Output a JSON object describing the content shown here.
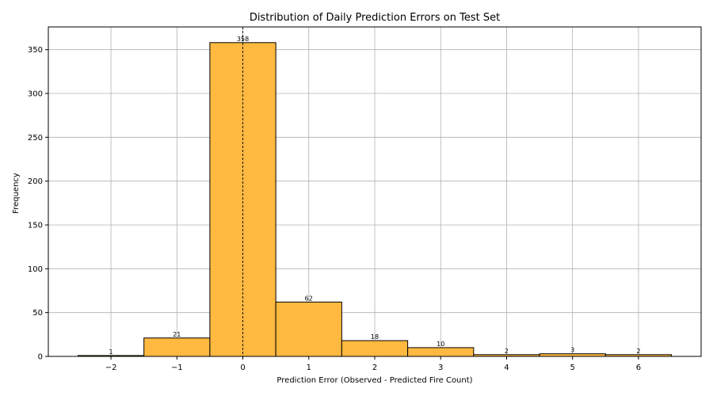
{
  "chart_data": {
    "type": "bar",
    "title": "Distribution of Daily Prediction Errors on Test Set",
    "xlabel": "Prediction Error (Observed - Predicted Fire Count)",
    "ylabel": "Frequency",
    "x": [
      -2,
      -1,
      0,
      1,
      2,
      3,
      4,
      5,
      6
    ],
    "values": [
      1,
      21,
      358,
      62,
      18,
      10,
      2,
      3,
      2
    ],
    "data_labels": [
      "1",
      "21",
      "358",
      "62",
      "18",
      "10",
      "2",
      "3",
      "2"
    ],
    "xticks": [
      -2,
      -1,
      0,
      1,
      2,
      3,
      4,
      5,
      6
    ],
    "xtick_labels": [
      "−2",
      "−1",
      "0",
      "1",
      "2",
      "3",
      "4",
      "5",
      "6"
    ],
    "yticks": [
      0,
      50,
      100,
      150,
      200,
      250,
      300,
      350
    ],
    "ytick_labels": [
      "0",
      "50",
      "100",
      "150",
      "200",
      "250",
      "300",
      "350"
    ],
    "xlim": [
      -2.95,
      6.95
    ],
    "ylim": [
      0,
      375.9
    ],
    "bin_width": 1,
    "grid": true,
    "reference_line": {
      "x": 0,
      "style": "dashed",
      "color": "#000000"
    },
    "bar_color": "#ffb940",
    "edge_color": "#000000"
  }
}
